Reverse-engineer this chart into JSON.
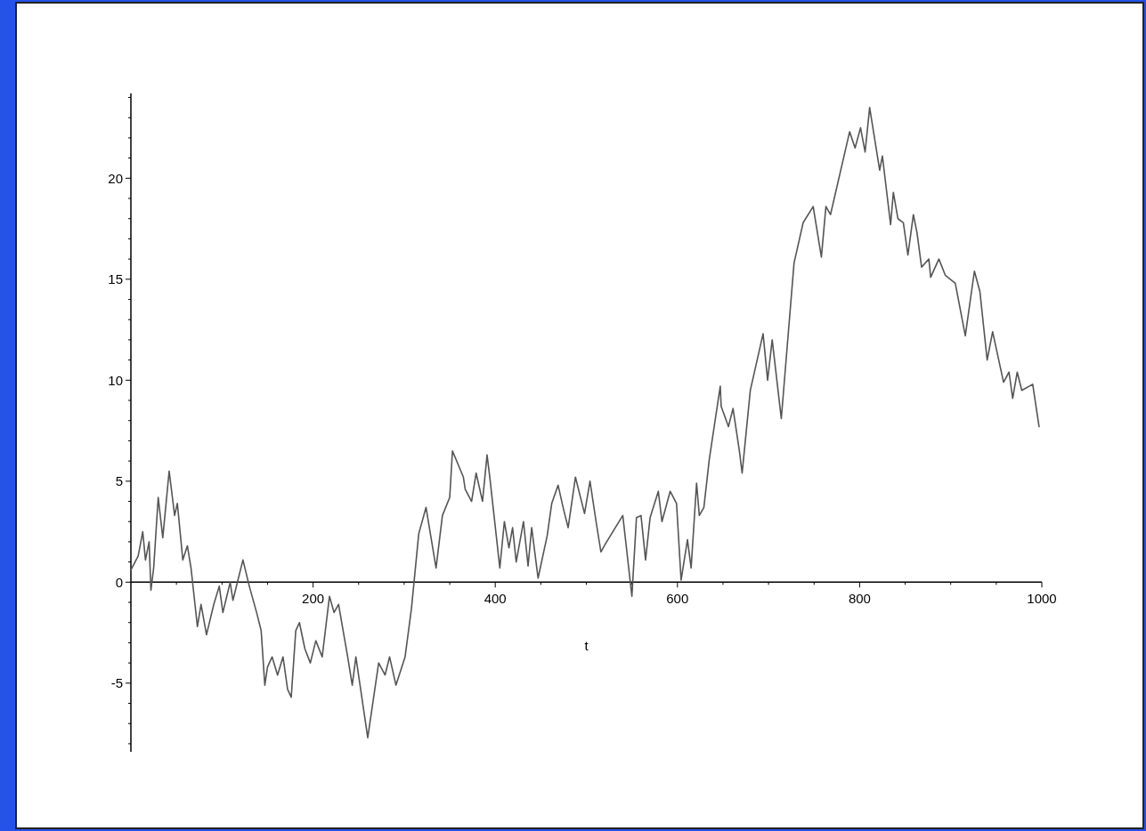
{
  "chart_data": {
    "type": "line",
    "xlabel": "t",
    "xlim": [
      0,
      1000
    ],
    "ylim": [
      -8.4,
      24.2
    ],
    "xticks": [
      {
        "value": 50,
        "label": null
      },
      {
        "value": 100,
        "label": null
      },
      {
        "value": 150,
        "label": null
      },
      200,
      {
        "value": 250,
        "label": null
      },
      {
        "value": 300,
        "label": null
      },
      {
        "value": 350,
        "label": null
      },
      400,
      {
        "value": 450,
        "label": null
      },
      {
        "value": 500,
        "label": null
      },
      {
        "value": 550,
        "label": null
      },
      600,
      {
        "value": 650,
        "label": null
      },
      {
        "value": 700,
        "label": null
      },
      {
        "value": 750,
        "label": null
      },
      800,
      {
        "value": 850,
        "label": null
      },
      {
        "value": 900,
        "label": null
      },
      {
        "value": 950,
        "label": null
      },
      1000
    ],
    "yticks": [
      {
        "value": -8,
        "label": null
      },
      {
        "value": -7,
        "label": null
      },
      {
        "value": -6,
        "label": null
      },
      -5,
      {
        "value": -4,
        "label": null
      },
      {
        "value": -3,
        "label": null
      },
      {
        "value": -2,
        "label": null
      },
      {
        "value": -1,
        "label": null
      },
      0,
      {
        "value": 1,
        "label": null
      },
      {
        "value": 2,
        "label": null
      },
      {
        "value": 3,
        "label": null
      },
      {
        "value": 4,
        "label": null
      },
      5,
      {
        "value": 6,
        "label": null
      },
      {
        "value": 7,
        "label": null
      },
      {
        "value": 8,
        "label": null
      },
      {
        "value": 9,
        "label": null
      },
      10,
      {
        "value": 11,
        "label": null
      },
      {
        "value": 12,
        "label": null
      },
      {
        "value": 13,
        "label": null
      },
      {
        "value": 14,
        "label": null
      },
      15,
      {
        "value": 16,
        "label": null
      },
      {
        "value": 17,
        "label": null
      },
      {
        "value": 18,
        "label": null
      },
      {
        "value": 19,
        "label": null
      },
      20,
      {
        "value": 21,
        "label": null
      },
      {
        "value": 22,
        "label": null
      },
      {
        "value": 23,
        "label": null
      },
      {
        "value": 24,
        "label": null
      }
    ],
    "grid": false,
    "marker": "none",
    "line_style": "solid",
    "series": [
      {
        "color": "#555555",
        "x": [
          0,
          8,
          13,
          16,
          20,
          22,
          25,
          30,
          35,
          42,
          48,
          51,
          57,
          62,
          66,
          73,
          77,
          83,
          91,
          97,
          101,
          109,
          112,
          123,
          130,
          138,
          143,
          147,
          150,
          155,
          161,
          167,
          172,
          176,
          181,
          185,
          191,
          197,
          203,
          210,
          218,
          223,
          228,
          238,
          243,
          247,
          260,
          272,
          279,
          284,
          291,
          301,
          308,
          316,
          324,
          335,
          342,
          350,
          353,
          365,
          367,
          374,
          379,
          386,
          391,
          394,
          405,
          410,
          415,
          419,
          423,
          431,
          436,
          440,
          447,
          457,
          462,
          469,
          475,
          480,
          488,
          498,
          504,
          511,
          516,
          521,
          540,
          550,
          555,
          560,
          565,
          570,
          579,
          583,
          592,
          599,
          604,
          611,
          615,
          621,
          624,
          629,
          635,
          647,
          648,
          656,
          661,
          665,
          668,
          671,
          680,
          694,
          699,
          704,
          714,
          728,
          738,
          749,
          758,
          763,
          768,
          789,
          795,
          801,
          806,
          811,
          822,
          825,
          834,
          837,
          842,
          848,
          853,
          859,
          863,
          868,
          876,
          878,
          887,
          894,
          905,
          916,
          926,
          932,
          940,
          946,
          958,
          964,
          968,
          973,
          978,
          990,
          993,
          997
        ],
        "values": [
          0.6,
          1.3,
          2.5,
          1.1,
          2.0,
          -0.4,
          0.7,
          4.2,
          2.2,
          5.5,
          3.3,
          3.9,
          1.1,
          1.8,
          0.7,
          -2.2,
          -1.1,
          -2.6,
          -1.1,
          -0.2,
          -1.5,
          0,
          -0.9,
          1.1,
          -0.2,
          -1.5,
          -2.4,
          -5.1,
          -4.2,
          -3.7,
          -4.6,
          -3.7,
          -5.3,
          -5.7,
          -2.4,
          -2.0,
          -3.3,
          -4.0,
          -2.9,
          -3.7,
          -0.7,
          -1.5,
          -1.1,
          -3.7,
          -5.1,
          -3.7,
          -7.7,
          -4.0,
          -4.6,
          -3.7,
          -5.1,
          -3.7,
          -1.3,
          2.4,
          3.7,
          0.7,
          3.3,
          4.2,
          6.5,
          5.2,
          4.6,
          4.0,
          5.4,
          4.0,
          6.3,
          5.2,
          0.7,
          3.0,
          1.7,
          2.7,
          1.0,
          3.0,
          0.8,
          2.7,
          0.2,
          2.3,
          3.9,
          4.8,
          3.6,
          2.7,
          5.2,
          3.4,
          5.0,
          2.9,
          1.5,
          1.9,
          3.3,
          -0.7,
          3.2,
          3.3,
          1.1,
          3.2,
          4.5,
          3.0,
          4.5,
          3.9,
          0.1,
          2.1,
          0.7,
          4.9,
          3.3,
          3.7,
          6.1,
          9.7,
          8.7,
          7.7,
          8.6,
          7.4,
          6.5,
          5.4,
          9.5,
          12.3,
          10.0,
          12.0,
          8.1,
          15.8,
          17.8,
          18.6,
          16.1,
          18.6,
          18.2,
          22.3,
          21.5,
          22.5,
          21.3,
          23.5,
          20.4,
          21.1,
          17.7,
          19.3,
          18.0,
          17.8,
          16.2,
          18.2,
          17.3,
          15.6,
          16.0,
          15.1,
          16.0,
          15.2,
          14.8,
          12.2,
          15.4,
          14.4,
          11.0,
          12.4,
          9.9,
          10.4,
          9.1,
          10.4,
          9.5,
          9.8,
          8.9,
          7.7
        ]
      }
    ]
  }
}
